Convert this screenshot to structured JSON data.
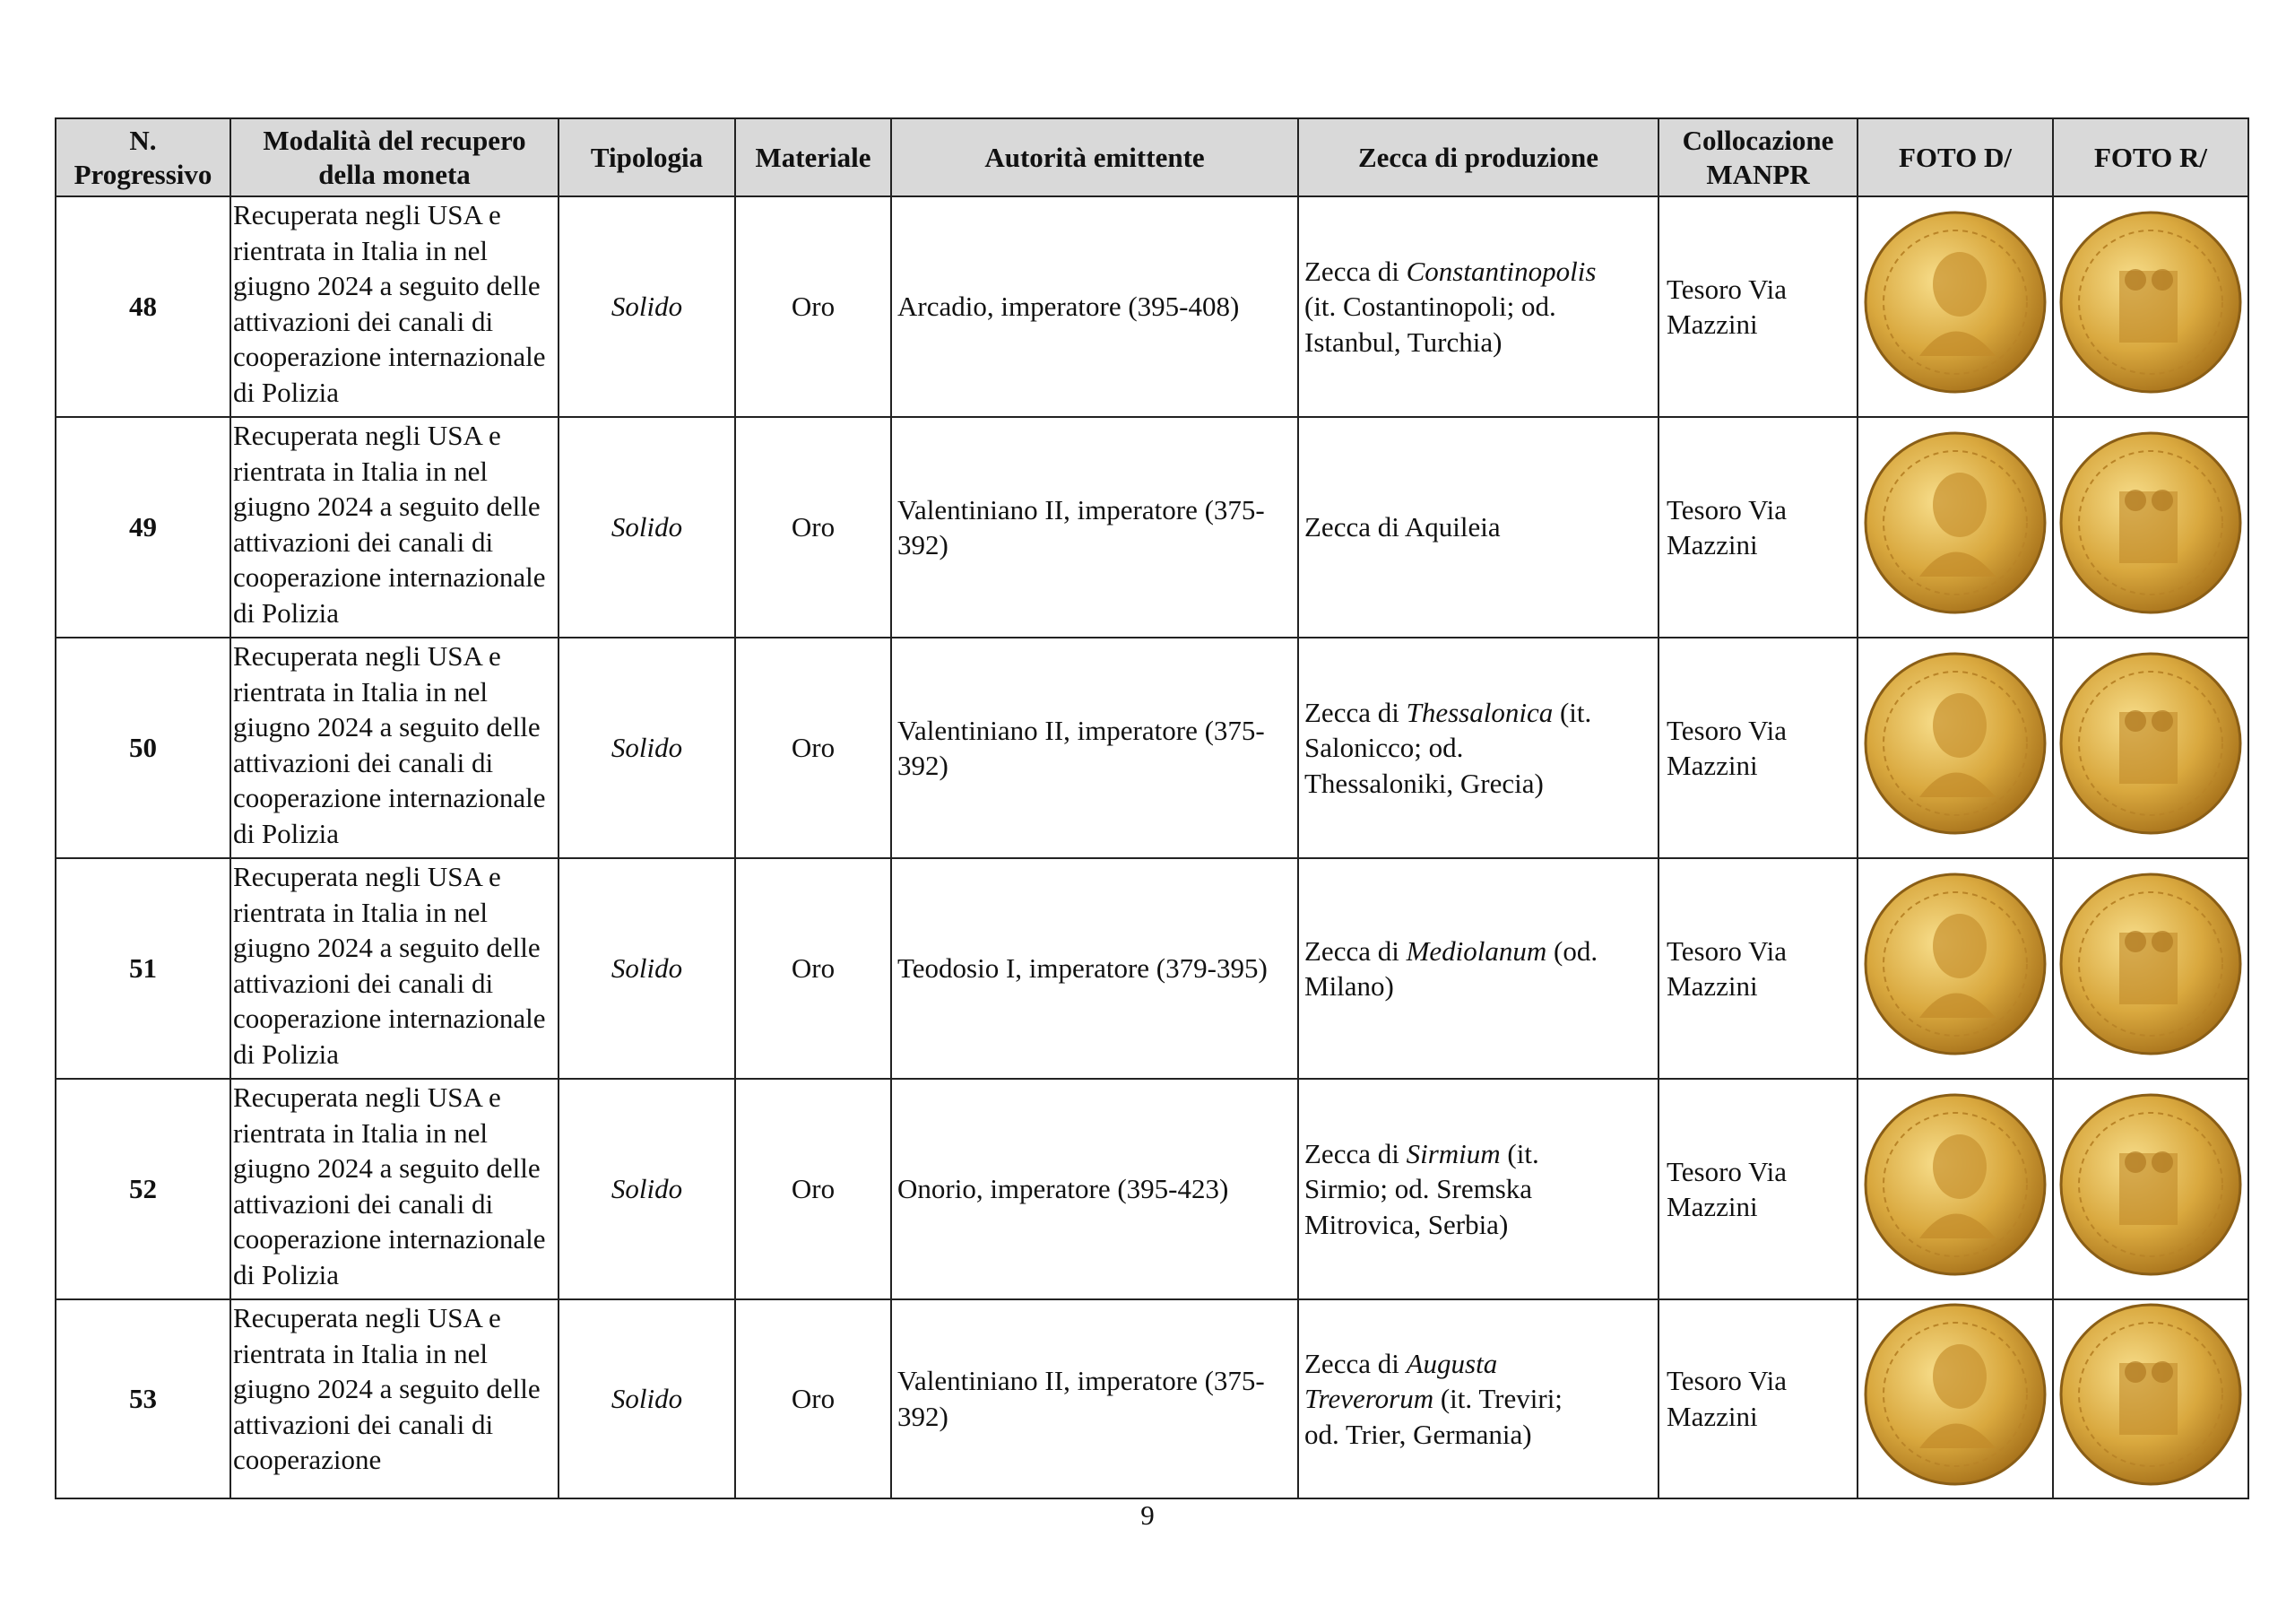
{
  "table": {
    "headers": [
      "N. Progressivo",
      "Modalità del recupero della moneta",
      "Tipologia",
      "Materiale",
      "Autorità emittente",
      "Zecca di produzione",
      "Collocazione MANPR",
      "FOTO D/",
      "FOTO R/"
    ],
    "rows": [
      {
        "n": "48",
        "modalita": "Recuperata negli USA e rientrata in Italia in nel giugno 2024 a seguito delle attivazioni dei canali di cooperazione internazionale di Polizia",
        "tipologia": "Solido",
        "materiale": "Oro",
        "autorita": "Arcadio, imperatore (395-408)",
        "zecca": [
          {
            "text": "Zecca di "
          },
          {
            "text": "Constantinopolis",
            "em": true
          },
          {
            "text": " (it. Costantinopoli; od. Istanbul, Turchia)"
          }
        ],
        "collocazione": "Tesoro Via Mazzini"
      },
      {
        "n": "49",
        "modalita": "Recuperata negli USA e rientrata in Italia in nel giugno 2024 a seguito delle attivazioni dei canali di cooperazione internazionale di Polizia",
        "tipologia": "Solido",
        "materiale": "Oro",
        "autorita": "Valentiniano II, imperatore (375-392)",
        "zecca": [
          {
            "text": "Zecca di Aquileia"
          }
        ],
        "collocazione": "Tesoro Via Mazzini"
      },
      {
        "n": "50",
        "modalita": "Recuperata negli USA e rientrata in Italia in nel giugno 2024 a seguito delle attivazioni dei canali di cooperazione internazionale di Polizia",
        "tipologia": "Solido",
        "materiale": "Oro",
        "autorita": "Valentiniano II, imperatore (375-392)",
        "zecca": [
          {
            "text": "Zecca di "
          },
          {
            "text": "Thessalonica",
            "em": true
          },
          {
            "text": " (it. Salonicco; od. Thessaloniki, Grecia)"
          }
        ],
        "collocazione": "Tesoro Via Mazzini"
      },
      {
        "n": "51",
        "modalita": "Recuperata negli USA e rientrata in Italia in nel giugno 2024 a seguito delle attivazioni dei canali di cooperazione internazionale di Polizia",
        "tipologia": "Solido",
        "materiale": "Oro",
        "autorita": "Teodosio I, imperatore (379-395)",
        "zecca": [
          {
            "text": "Zecca di "
          },
          {
            "text": "Mediolanum",
            "em": true
          },
          {
            "text": " (od. Milano)"
          }
        ],
        "collocazione": "Tesoro Via Mazzini"
      },
      {
        "n": "52",
        "modalita": "Recuperata negli USA e rientrata in Italia in nel giugno 2024 a seguito delle attivazioni dei canali di cooperazione internazionale di Polizia",
        "tipologia": "Solido",
        "materiale": "Oro",
        "autorita": "Onorio, imperatore (395-423)",
        "zecca": [
          {
            "text": "Zecca di "
          },
          {
            "text": "Sirmium",
            "em": true
          },
          {
            "text": " (it. Sirmio; od. Sremska Mitrovica, Serbia)"
          }
        ],
        "collocazione": "Tesoro Via Mazzini"
      },
      {
        "n": "53",
        "modalita": "Recuperata negli USA e rientrata in Italia in nel giugno 2024 a seguito delle attivazioni dei canali di cooperazione",
        "tipologia": "Solido",
        "materiale": "Oro",
        "autorita": "Valentiniano II, imperatore (375-392)",
        "zecca": [
          {
            "text": "Zecca di "
          },
          {
            "text": "Augusta Treverorum",
            "em": true
          },
          {
            "text": " (it. Treviri; od. Trier, Germania)"
          }
        ],
        "collocazione": "Tesoro Via Mazzini"
      }
    ]
  },
  "footer": {
    "page": "9"
  }
}
